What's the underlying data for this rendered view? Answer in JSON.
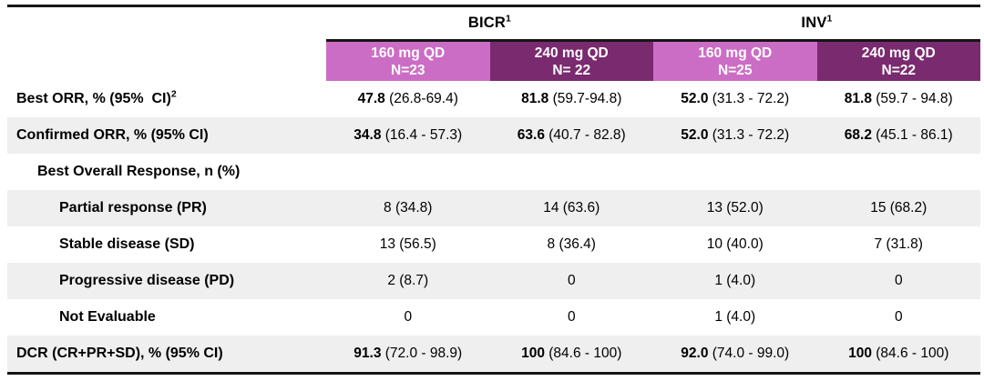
{
  "table": {
    "column_groups": [
      {
        "label": "BICR",
        "sup": "1"
      },
      {
        "label": "INV",
        "sup": "1"
      }
    ],
    "columns": [
      {
        "line1": "160 mg QD",
        "line2": "N=23",
        "color": "pink"
      },
      {
        "line1": "240 mg QD",
        "line2": "N= 22",
        "color": "purple"
      },
      {
        "line1": "160 mg QD",
        "line2": "N=25",
        "color": "pink"
      },
      {
        "line1": "240 mg QD",
        "line2": "N=22",
        "color": "purple"
      }
    ],
    "rows": [
      {
        "label": "Best ORR, % (95%  CI)",
        "sup": "2",
        "indent": 0,
        "shaded": false,
        "cells": [
          {
            "b": "47.8",
            "r": "(26.8-69.4)"
          },
          {
            "b": "81.8",
            "r": "(59.7-94.8)"
          },
          {
            "b": "52.0",
            "r": "(31.3 - 72.2)"
          },
          {
            "b": "81.8",
            "r": "(59.7 - 94.8)"
          }
        ]
      },
      {
        "label": "Confirmed ORR, % (95% CI)",
        "sup": "",
        "indent": 0,
        "shaded": true,
        "cells": [
          {
            "b": "34.8",
            "r": "(16.4 - 57.3)"
          },
          {
            "b": "63.6",
            "r": "(40.7 - 82.8)"
          },
          {
            "b": "52.0",
            "r": "(31.3 - 72.2)"
          },
          {
            "b": "68.2",
            "r": "(45.1 - 86.1)"
          }
        ]
      },
      {
        "label": "Best Overall Response, n (%)",
        "sup": "",
        "indent": 1,
        "shaded": false,
        "cells": [
          {
            "b": "",
            "r": ""
          },
          {
            "b": "",
            "r": ""
          },
          {
            "b": "",
            "r": ""
          },
          {
            "b": "",
            "r": ""
          }
        ]
      },
      {
        "label": "Partial response (PR)",
        "sup": "",
        "indent": 2,
        "shaded": true,
        "cells": [
          {
            "b": "",
            "r": "8 (34.8)"
          },
          {
            "b": "",
            "r": "14 (63.6)"
          },
          {
            "b": "",
            "r": "13 (52.0)"
          },
          {
            "b": "",
            "r": "15 (68.2)"
          }
        ]
      },
      {
        "label": "Stable disease (SD)",
        "sup": "",
        "indent": 2,
        "shaded": false,
        "cells": [
          {
            "b": "",
            "r": "13 (56.5)"
          },
          {
            "b": "",
            "r": "8 (36.4)"
          },
          {
            "b": "",
            "r": "10 (40.0)"
          },
          {
            "b": "",
            "r": "7 (31.8)"
          }
        ]
      },
      {
        "label": "Progressive disease (PD)",
        "sup": "",
        "indent": 2,
        "shaded": true,
        "cells": [
          {
            "b": "",
            "r": "2 (8.7)"
          },
          {
            "b": "",
            "r": "0"
          },
          {
            "b": "",
            "r": "1 (4.0)"
          },
          {
            "b": "",
            "r": "0"
          }
        ]
      },
      {
        "label": "Not Evaluable",
        "sup": "",
        "indent": 2,
        "shaded": false,
        "cells": [
          {
            "b": "",
            "r": "0"
          },
          {
            "b": "",
            "r": "0"
          },
          {
            "b": "",
            "r": "1 (4.0)"
          },
          {
            "b": "",
            "r": "0"
          }
        ]
      },
      {
        "label": "DCR (CR+PR+SD), % (95% CI)",
        "sup": "",
        "indent": 0,
        "shaded": true,
        "cells": [
          {
            "b": "91.3",
            "r": "(72.0 - 98.9)"
          },
          {
            "b": "100",
            "r": "(84.6 - 100)"
          },
          {
            "b": "92.0",
            "r": "(74.0 - 99.0)"
          },
          {
            "b": "100",
            "r": "(84.6 - 100)"
          }
        ]
      }
    ],
    "colors": {
      "pink": "#CC6DC5",
      "purple": "#7A2A6F",
      "shaded_row": "#EFEFEF",
      "rule": "#161616"
    }
  }
}
